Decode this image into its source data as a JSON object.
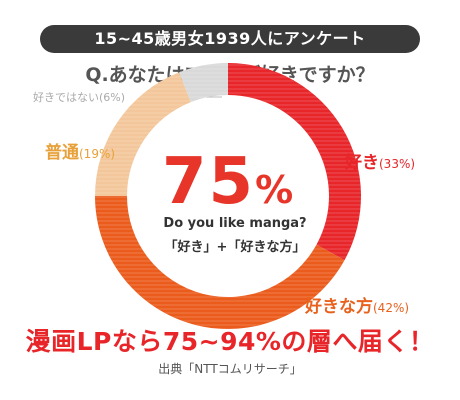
{
  "header": {
    "banner": "15~45歳男女1939人にアンケート",
    "question": "Q.あなたはマンガが好きですか？"
  },
  "center": {
    "number": "75",
    "symbol": "%",
    "subtitle_en": "Do you like manga?",
    "subtitle_jp": "「好き」+「好きな方」"
  },
  "labels": {
    "dislike": {
      "name": "好きではない",
      "pct": "(6%)"
    },
    "neutral": {
      "name": "普通",
      "pct": "(19%)"
    },
    "like": {
      "name": "好き",
      "pct": "(33%)"
    },
    "ratherlike": {
      "name": "好きな方",
      "pct": "(42%)"
    }
  },
  "footer": {
    "headline": "漫画LPなら75~94%の層へ届く！",
    "source": "出典「NTTコムリサーチ」"
  },
  "chart_data": {
    "type": "pie",
    "categories": [
      "好き",
      "好きな方",
      "普通",
      "好きではない"
    ],
    "values": [
      33,
      42,
      19,
      6
    ],
    "colors": [
      "#e8262a",
      "#ea5b1c",
      "#f3c79b",
      "#d9d9d9"
    ]
  }
}
